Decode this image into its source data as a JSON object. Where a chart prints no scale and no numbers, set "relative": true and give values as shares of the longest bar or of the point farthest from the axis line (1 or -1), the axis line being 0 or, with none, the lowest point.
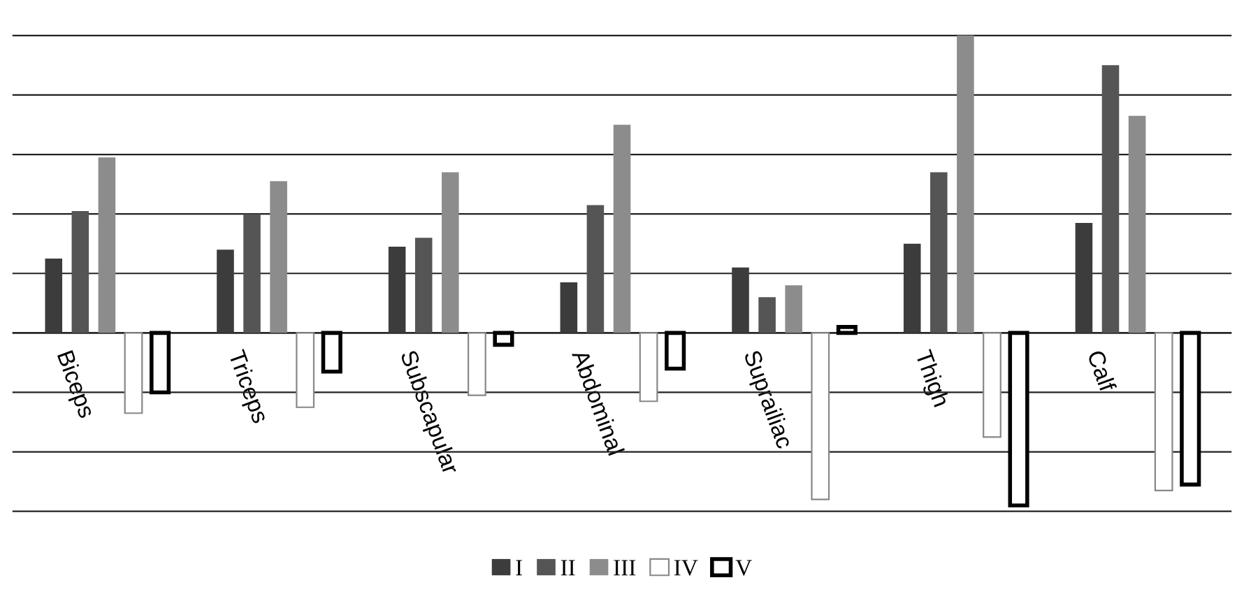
{
  "chart_data": {
    "type": "bar",
    "relative": true,
    "grid": "y",
    "legend": "bottom",
    "categories": [
      "Biceps",
      "Triceps",
      "Subscapular",
      "Abdominal",
      "Suprailiac",
      "Thigh",
      "Calf"
    ],
    "series": [
      {
        "name": "I",
        "color": "#3c3c3c",
        "values": [
          0.25,
          0.28,
          0.29,
          0.17,
          0.22,
          0.3,
          0.37
        ]
      },
      {
        "name": "II",
        "color": "#555555",
        "values": [
          0.41,
          0.4,
          0.32,
          0.43,
          0.12,
          0.54,
          0.9
        ]
      },
      {
        "name": "III",
        "color": "#8c8c8c",
        "values": [
          0.59,
          0.51,
          0.54,
          0.7,
          0.16,
          1.0,
          0.73
        ]
      },
      {
        "name": "IV",
        "color": "#ffffff",
        "values": [
          -0.27,
          -0.25,
          -0.21,
          -0.23,
          -0.56,
          -0.35,
          -0.53
        ]
      },
      {
        "name": "V",
        "color": "#ffffff",
        "values": [
          -0.2,
          -0.13,
          -0.04,
          -0.12,
          0.02,
          -0.58,
          -0.51
        ]
      }
    ]
  }
}
